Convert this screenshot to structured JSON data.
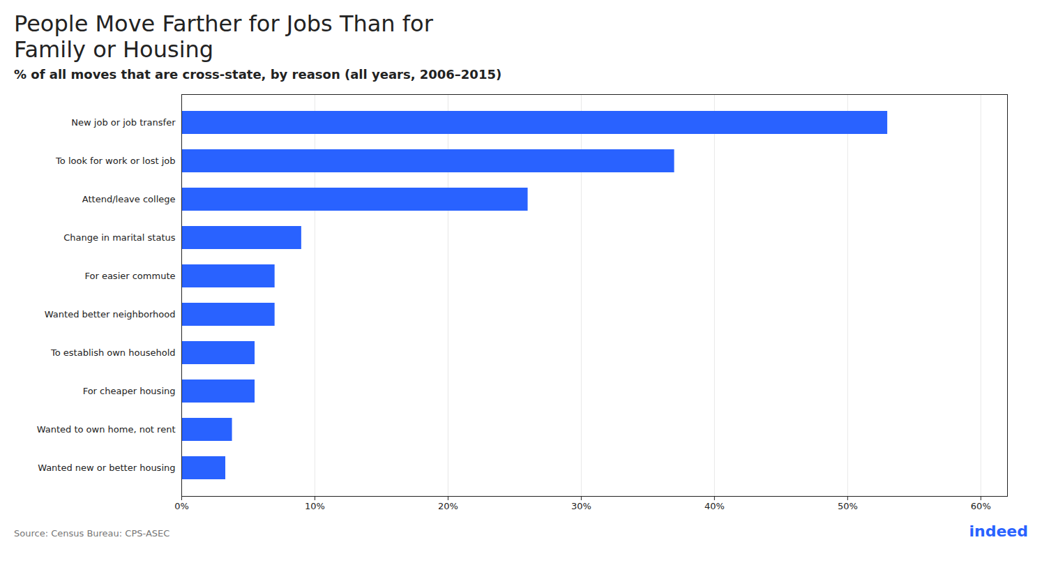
{
  "chart_data": {
    "type": "bar",
    "orientation": "horizontal",
    "title": "People Move Farther for Jobs Than for\nFamily or Housing",
    "subtitle": "% of all moves that are cross-state, by reason (all years, 2006–2015)",
    "source": "Source: Census Bureau: CPS-ASEC",
    "annotations": [
      "indeed"
    ],
    "categories": [
      "New job or job transfer",
      "To look for work or lost job",
      "Attend/leave college",
      "Change in marital status",
      "For easier commute",
      "Wanted better neighborhood",
      "To establish own household",
      "For cheaper housing",
      "Wanted to own home, not rent",
      "Wanted new or better housing"
    ],
    "values": [
      53.0,
      37.0,
      26.0,
      9.0,
      7.0,
      7.0,
      5.5,
      5.5,
      3.8,
      3.3
    ],
    "color": "#2962FF",
    "xlim": [
      0,
      62
    ],
    "xticks": [
      {
        "value": 0,
        "label": "0%"
      },
      {
        "value": 10,
        "label": "10%"
      },
      {
        "value": 20,
        "label": "20%"
      },
      {
        "value": 30,
        "label": "30%"
      },
      {
        "value": 40,
        "label": "40%"
      },
      {
        "value": 50,
        "label": "50%"
      },
      {
        "value": 60,
        "label": "60%"
      }
    ],
    "grid": true
  }
}
